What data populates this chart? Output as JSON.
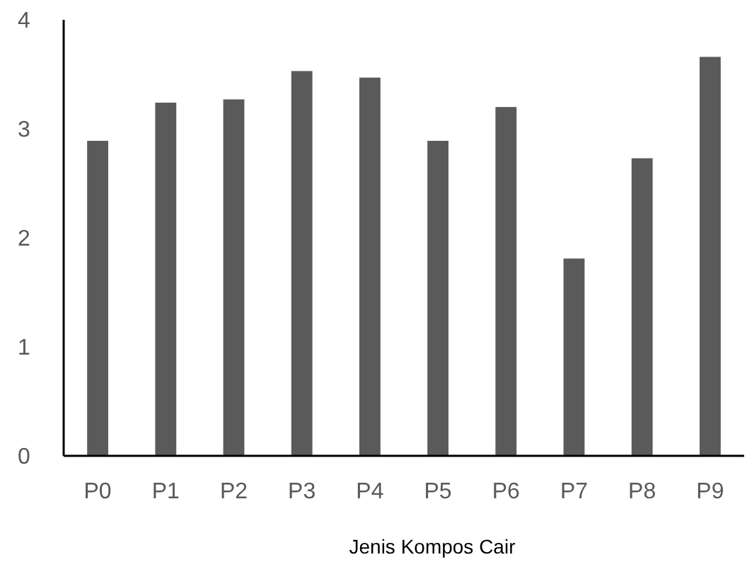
{
  "chart_data": {
    "type": "bar",
    "xlabel": "Jenis Kompos Cair",
    "categories": [
      "P0",
      "P1",
      "P2",
      "P3",
      "P4",
      "P5",
      "P6",
      "P7",
      "P8",
      "P9"
    ],
    "values": [
      2.89,
      3.24,
      3.27,
      3.53,
      3.47,
      2.89,
      3.2,
      1.81,
      2.73,
      3.66
    ],
    "color": "#5a5a5a",
    "ylim": [
      0,
      4
    ],
    "yticks": [
      0,
      1,
      2,
      3,
      4
    ],
    "grid": false
  }
}
